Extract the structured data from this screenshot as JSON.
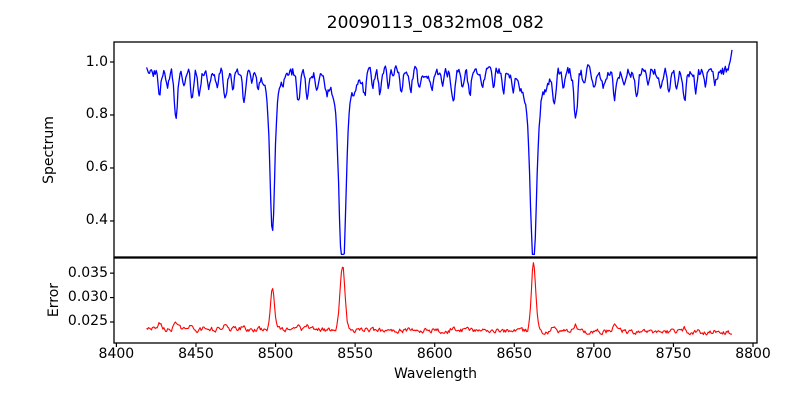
{
  "title": "20090113_0832m08_082",
  "colors": {
    "spectrum_line": "#0000ff",
    "error_line": "#ff0000",
    "axes": "#000000",
    "background": "#ffffff"
  },
  "axes": {
    "x": {
      "label": "Wavelength",
      "range": [
        8398.5,
        8802.5
      ],
      "tick_labels": [
        "8400",
        "8450",
        "8500",
        "8550",
        "8600",
        "8650",
        "8700",
        "8750",
        "8800"
      ],
      "tick_values": [
        8400,
        8450,
        8500,
        8550,
        8600,
        8650,
        8700,
        8750,
        8800
      ]
    },
    "y_spectrum": {
      "label": "Spectrum",
      "range": [
        0.264,
        1.0755
      ],
      "tick_labels": [
        "0.4",
        "0.6",
        "0.8",
        "1.0"
      ],
      "tick_values": [
        0.4,
        0.6,
        0.8,
        1.0
      ]
    },
    "y_error": {
      "label": "Error",
      "range": [
        0.0207,
        0.0381
      ],
      "tick_labels": [
        "0.025",
        "0.030",
        "0.035"
      ],
      "tick_values": [
        0.025,
        0.03,
        0.035
      ]
    }
  },
  "chart_data": [
    {
      "type": "line",
      "name": "spectrum",
      "title": "20090113_0832m08_082",
      "xlabel": "Wavelength",
      "ylabel": "Spectrum",
      "color": "#0000ff",
      "x_start": 8419,
      "x_end": 8787,
      "xlim": [
        8398.5,
        8802.5
      ],
      "ylim": [
        0.264,
        1.0755
      ],
      "grid": false,
      "legend": "none",
      "continuum": 0.965,
      "noise_amplitude": 0.018,
      "strong_absorption_lines_center_depth_sigma_wingdepth_wingsigma": [
        [
          8498.0,
          0.5,
          1.5,
          0.1,
          5.0
        ],
        [
          8542.1,
          0.66,
          1.9,
          0.15,
          6.5
        ],
        [
          8662.1,
          0.6,
          1.8,
          0.14,
          6.0
        ]
      ],
      "weak_absorption_lines_center_depth_sigma": [
        [
          8427.0,
          0.09,
          0.85
        ],
        [
          8432.0,
          0.05,
          0.85
        ],
        [
          8437.5,
          0.16,
          1.1
        ],
        [
          8443.0,
          0.06,
          0.85
        ],
        [
          8447.5,
          0.1,
          0.9
        ],
        [
          8452.0,
          0.07,
          0.85
        ],
        [
          8458.0,
          0.05,
          0.85
        ],
        [
          8463.0,
          0.06,
          0.85
        ],
        [
          8468.5,
          0.11,
          0.9
        ],
        [
          8473.0,
          0.06,
          0.85
        ],
        [
          8480.0,
          0.1,
          0.9
        ],
        [
          8485.0,
          0.05,
          0.85
        ],
        [
          8489.0,
          0.06,
          0.85
        ],
        [
          8514.5,
          0.12,
          1.0
        ],
        [
          8520.0,
          0.09,
          0.9
        ],
        [
          8526.0,
          0.05,
          0.85
        ],
        [
          8532.0,
          0.05,
          0.85
        ],
        [
          8556.0,
          0.07,
          0.9
        ],
        [
          8561.0,
          0.05,
          0.85
        ],
        [
          8565.5,
          0.08,
          0.9
        ],
        [
          8571.0,
          0.05,
          0.85
        ],
        [
          8579.0,
          0.08,
          0.9
        ],
        [
          8585.0,
          0.06,
          0.85
        ],
        [
          8590.0,
          0.05,
          0.85
        ],
        [
          8598.0,
          0.07,
          0.9
        ],
        [
          8605.0,
          0.05,
          0.85
        ],
        [
          8611.5,
          0.12,
          1.0
        ],
        [
          8617.0,
          0.06,
          0.85
        ],
        [
          8622.0,
          0.09,
          0.9
        ],
        [
          8630.0,
          0.06,
          0.85
        ],
        [
          8637.0,
          0.07,
          0.9
        ],
        [
          8643.0,
          0.08,
          0.9
        ],
        [
          8649.0,
          0.06,
          0.85
        ],
        [
          8675.0,
          0.11,
          1.0
        ],
        [
          8681.0,
          0.07,
          0.85
        ],
        [
          8688.6,
          0.19,
          1.1
        ],
        [
          8694.0,
          0.06,
          0.85
        ],
        [
          8700.0,
          0.08,
          0.9
        ],
        [
          8706.0,
          0.07,
          0.9
        ],
        [
          8713.0,
          0.11,
          0.9
        ],
        [
          8719.0,
          0.06,
          0.85
        ],
        [
          8727.0,
          0.09,
          0.9
        ],
        [
          8734.0,
          0.07,
          0.85
        ],
        [
          8742.0,
          0.09,
          0.9
        ],
        [
          8747.0,
          0.06,
          0.85
        ],
        [
          8752.0,
          0.08,
          0.85
        ],
        [
          8757.0,
          0.1,
          0.9
        ],
        [
          8764.0,
          0.07,
          0.85
        ],
        [
          8770.0,
          0.06,
          0.85
        ],
        [
          8776.0,
          0.05,
          0.85
        ]
      ],
      "emission_features_center_height_sigma": [
        [
          8789.0,
          0.085,
          2.5
        ]
      ]
    },
    {
      "type": "line",
      "name": "error",
      "xlabel": "Wavelength",
      "ylabel": "Error",
      "color": "#ff0000",
      "x_start": 8419,
      "x_end": 8787,
      "xlim": [
        8398.5,
        8802.5
      ],
      "ylim": [
        0.0207,
        0.0381
      ],
      "grid": false,
      "legend": "none",
      "baseline_start": 0.0236,
      "baseline_end": 0.0229,
      "noise_amplitude": 0.00045,
      "peaks_center_height_sigma": [
        [
          8498.0,
          0.009,
          1.2
        ],
        [
          8542.1,
          0.0132,
          1.5
        ],
        [
          8662.1,
          0.0138,
          1.4
        ],
        [
          8427.0,
          0.0011,
          1.0
        ],
        [
          8437.5,
          0.0016,
          1.1
        ],
        [
          8447.5,
          0.001,
          1.0
        ],
        [
          8468.5,
          0.0009,
          1.0
        ],
        [
          8480.0,
          0.0008,
          1.0
        ],
        [
          8514.5,
          0.0015,
          1.1
        ],
        [
          8520.0,
          0.001,
          1.0
        ],
        [
          8611.5,
          0.0008,
          1.0
        ],
        [
          8675.0,
          0.001,
          1.0
        ],
        [
          8688.6,
          0.0013,
          1.1
        ],
        [
          8713.0,
          0.0009,
          1.0
        ],
        [
          8757.0,
          0.001,
          1.0
        ]
      ]
    }
  ]
}
